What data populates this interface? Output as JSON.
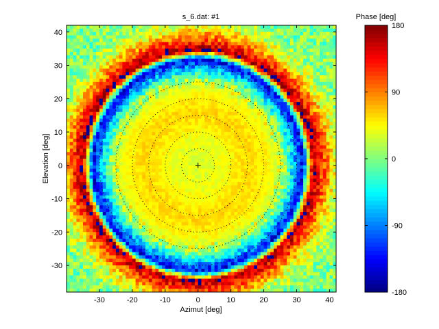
{
  "chart_data": {
    "type": "heatmap",
    "title": "s_6.dat: #1",
    "xlabel": "Azimut [deg]",
    "ylabel": "Elevation [deg]",
    "colorbar_label": "Phase [deg]",
    "xlim": [
      -40,
      42
    ],
    "ylim": [
      -38,
      42
    ],
    "clim": [
      -180,
      180
    ],
    "xticks": [
      -30,
      -20,
      -10,
      0,
      10,
      20,
      30,
      40
    ],
    "yticks": [
      -30,
      -20,
      -10,
      0,
      10,
      20,
      30,
      40
    ],
    "cticks": [
      -180,
      -90,
      0,
      90,
      180
    ],
    "colormap": "jet",
    "center": [
      0,
      0
    ],
    "center_marker": "+",
    "dotted_circle_radii": [
      5,
      10,
      15,
      20,
      25,
      30
    ],
    "phase_rings": [
      {
        "radius": 0,
        "phase": 30
      },
      {
        "radius": 8,
        "phase": 40
      },
      {
        "radius": 16,
        "phase": 60
      },
      {
        "radius": 22,
        "phase": 45
      },
      {
        "radius": 26,
        "phase": 15
      },
      {
        "radius": 29,
        "phase": -60
      },
      {
        "radius": 32,
        "phase": -140
      },
      {
        "radius": 35,
        "phase": 170
      },
      {
        "radius": 38,
        "phase": 110
      },
      {
        "radius": 42,
        "phase": 35
      },
      {
        "radius": 47,
        "phase": 0
      },
      {
        "radius": 60,
        "phase": 0
      }
    ],
    "grid": false
  }
}
